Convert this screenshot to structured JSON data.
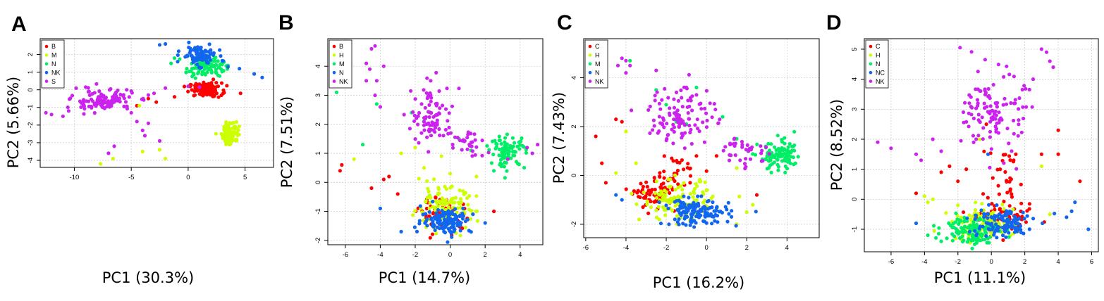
{
  "colors": {
    "red": "#ff0000",
    "yellow": "#ccff00",
    "green": "#00ee66",
    "blue": "#1166ee",
    "magenta": "#cc22ee"
  },
  "chart_data": [
    {
      "type": "scatter",
      "panel": "A",
      "xlabel": "PC1 (30.3%)",
      "ylabel": "PC2 (5.66%)",
      "xlim": [
        -13,
        7.5
      ],
      "ylim": [
        -4.4,
        2.9
      ],
      "xticks": [
        -10,
        -5,
        0,
        5
      ],
      "yticks": [
        -4,
        -3,
        -2,
        -1,
        0,
        1,
        2
      ],
      "grid": true,
      "legend_position": "top-left",
      "series": [
        {
          "name": "B",
          "color": "#ff0000",
          "clusters": [
            [
              1.5,
              0.0,
              1.3,
              0.22,
              110
            ]
          ],
          "points": [
            [
              -4.5,
              -0.9
            ],
            [
              -2.8,
              -0.7
            ],
            [
              -1.2,
              -0.4
            ],
            [
              4.6,
              -0.2
            ],
            [
              -3.5,
              -0.5
            ]
          ]
        },
        {
          "name": "M",
          "color": "#ccff00",
          "clusters": [
            [
              3.7,
              -2.45,
              0.7,
              0.35,
              110
            ]
          ],
          "points": [
            [
              -4.3,
              -0.9
            ],
            [
              -7.7,
              -4.2
            ],
            [
              -6.6,
              -3.9
            ],
            [
              -4.0,
              -3.5
            ],
            [
              -2.5,
              -3.4
            ],
            [
              -2.0,
              -3.9
            ]
          ]
        },
        {
          "name": "N",
          "color": "#00ee66",
          "clusters": [
            [
              1.5,
              1.3,
              1.5,
              0.3,
              100
            ]
          ],
          "points": [
            [
              -1.5,
              1.5
            ],
            [
              -1.2,
              1.8
            ]
          ]
        },
        {
          "name": "NK",
          "color": "#1166ee",
          "clusters": [
            [
              1.0,
              1.95,
              1.4,
              0.3,
              95
            ]
          ],
          "points": [
            [
              -2.0,
              2.6
            ],
            [
              -2.5,
              2.55
            ],
            [
              6.5,
              0.7
            ],
            [
              5.8,
              0.9
            ],
            [
              3.5,
              1.3
            ],
            [
              4.5,
              1.2
            ]
          ]
        },
        {
          "name": "S",
          "color": "#cc22ee",
          "clusters": [
            [
              -7.5,
              -0.6,
              2.5,
              0.35,
              120
            ]
          ],
          "points": [
            [
              -12.0,
              -1.4
            ],
            [
              -12.5,
              -1.3
            ],
            [
              -11.0,
              -1.5
            ],
            [
              -10.5,
              -1.2
            ],
            [
              -7.0,
              -3.6
            ],
            [
              -6.5,
              -3.2
            ],
            [
              -4.0,
              -2.3
            ],
            [
              -3.8,
              -2.6
            ],
            [
              -3.5,
              -1.9
            ],
            [
              -2.5,
              -2.9
            ],
            [
              -4.5,
              -1.8
            ],
            [
              -5.0,
              -1.3
            ],
            [
              -9.0,
              0.15
            ],
            [
              -3.0,
              -0.2
            ],
            [
              -2.0,
              0.1
            ],
            [
              0.0,
              0.2
            ],
            [
              1.0,
              0.15
            ]
          ]
        }
      ]
    },
    {
      "type": "scatter",
      "panel": "B",
      "xlabel": "PC1 (14.7%)",
      "ylabel": "PC2 (7.51%)",
      "xlim": [
        -7,
        5.3
      ],
      "ylim": [
        -2.15,
        4.95
      ],
      "xticks": [
        -6,
        -4,
        -2,
        0,
        2,
        4
      ],
      "yticks": [
        -2,
        -1,
        0,
        1,
        2,
        3,
        4
      ],
      "grid": true,
      "legend_position": "top-left",
      "series": [
        {
          "name": "B",
          "color": "#ff0000",
          "clusters": [
            [
              -0.3,
              -1.1,
              1.3,
              0.3,
              70
            ]
          ],
          "points": [
            [
              -6.2,
              0.6
            ],
            [
              -6.3,
              0.4
            ],
            [
              -4.5,
              -0.2
            ],
            [
              -3.8,
              0.1
            ],
            [
              -3.5,
              0.2
            ],
            [
              -3.0,
              -0.4
            ],
            [
              2.5,
              -1.0
            ]
          ]
        },
        {
          "name": "H",
          "color": "#ccff00",
          "clusters": [
            [
              -0.4,
              -0.9,
              1.7,
              0.4,
              110
            ]
          ],
          "points": [
            [
              -5.5,
              0.8
            ],
            [
              -2.8,
              1.0
            ],
            [
              -2.0,
              1.2
            ],
            [
              -1.5,
              0.5
            ],
            [
              1.5,
              0.2
            ],
            [
              0.0,
              0.3
            ],
            [
              -0.5,
              0.9
            ]
          ]
        },
        {
          "name": "M",
          "color": "#00ee66",
          "clusters": [
            [
              3.3,
              1.05,
              0.9,
              0.3,
              90
            ]
          ],
          "points": [
            [
              -6.5,
              3.1
            ],
            [
              -5.0,
              1.3
            ],
            [
              -4.2,
              2.7
            ],
            [
              -2.2,
              2.4
            ],
            [
              -1.5,
              2.1
            ],
            [
              0.5,
              1.5
            ],
            [
              1.2,
              1.1
            ]
          ]
        },
        {
          "name": "N",
          "color": "#1166ee",
          "clusters": [
            [
              -0.2,
              -1.3,
              1.3,
              0.25,
              130
            ]
          ],
          "points": [
            [
              -4.0,
              -0.9
            ],
            [
              2.0,
              -1.4
            ],
            [
              -2.8,
              -1.7
            ]
          ]
        },
        {
          "name": "NK",
          "color": "#cc22ee",
          "clusters": [
            [
              -1.0,
              2.3,
              1.1,
              0.6,
              90
            ],
            [
              1.0,
              1.3,
              1.0,
              0.3,
              30
            ]
          ],
          "points": [
            [
              -4.5,
              4.6
            ],
            [
              -4.3,
              4.7
            ],
            [
              -4.8,
              4.1
            ],
            [
              -4.3,
              3.0
            ],
            [
              -4.2,
              3.5
            ],
            [
              -4.0,
              2.6
            ],
            [
              -4.8,
              3.5
            ],
            [
              -3.8,
              4.0
            ],
            [
              -4.6,
              3.9
            ],
            [
              3.3,
              0.8
            ],
            [
              4.4,
              1.2
            ],
            [
              5.0,
              1.3
            ],
            [
              4.7,
              1.0
            ]
          ]
        }
      ]
    },
    {
      "type": "scatter",
      "panel": "C",
      "xlabel": "PC1 (16.2%)",
      "ylabel": "PC2 (7.43%)",
      "xlim": [
        -6.1,
        5.6
      ],
      "ylim": [
        -2.55,
        5.6
      ],
      "xticks": [
        -6,
        -4,
        -2,
        0,
        2,
        4
      ],
      "yticks": [
        -2,
        0,
        2,
        4
      ],
      "grid": true,
      "legend_position": "top-left",
      "series": [
        {
          "name": "C",
          "color": "#ff0000",
          "clusters": [
            [
              -2.5,
              -0.8,
              0.9,
              0.3,
              70
            ],
            [
              -1.5,
              0.2,
              1.0,
              0.35,
              30
            ]
          ],
          "points": [
            [
              -5.5,
              1.6
            ],
            [
              -4.5,
              2.3
            ],
            [
              -4.2,
              2.2
            ],
            [
              -5.0,
              -0.3
            ],
            [
              -5.2,
              0.5
            ],
            [
              2.5,
              -0.8
            ],
            [
              0.5,
              0.8
            ],
            [
              -0.5,
              0.8
            ]
          ]
        },
        {
          "name": "H",
          "color": "#ccff00",
          "clusters": [
            [
              -1.5,
              -1.0,
              1.6,
              0.45,
              110
            ]
          ],
          "points": [
            [
              -4.0,
              1.8
            ],
            [
              -4.5,
              0.1
            ],
            [
              -3.5,
              0.5
            ],
            [
              1.5,
              0.3
            ],
            [
              2.0,
              -1.5
            ],
            [
              2.3,
              -1.2
            ],
            [
              1.5,
              -2.0
            ]
          ]
        },
        {
          "name": "M",
          "color": "#00ee66",
          "clusters": [
            [
              3.7,
              0.75,
              1.0,
              0.35,
              100
            ]
          ],
          "points": [
            [
              -3.8,
              4.7
            ],
            [
              -2.5,
              3.5
            ],
            [
              -2.0,
              2.9
            ],
            [
              -0.5,
              3.6
            ],
            [
              0.8,
              2.4
            ],
            [
              1.5,
              1.5
            ],
            [
              -1.0,
              2.1
            ],
            [
              -1.5,
              2.2
            ]
          ]
        },
        {
          "name": "N",
          "color": "#1166ee",
          "clusters": [
            [
              -0.5,
              -1.5,
              1.5,
              0.3,
              140
            ]
          ],
          "points": [
            [
              -4.5,
              -0.8
            ],
            [
              -4.2,
              -1.0
            ]
          ]
        },
        {
          "name": "NK",
          "color": "#cc22ee",
          "clusters": [
            [
              -1.2,
              2.5,
              1.5,
              0.7,
              110
            ],
            [
              1.8,
              1.0,
              1.3,
              0.4,
              35
            ]
          ],
          "points": [
            [
              -4.2,
              4.8
            ],
            [
              -4.0,
              4.7
            ],
            [
              -3.8,
              4.5
            ],
            [
              -4.4,
              4.5
            ],
            [
              -4.0,
              4.2
            ],
            [
              -2.5,
              4.3
            ],
            [
              -1.0,
              3.6
            ],
            [
              -0.5,
              3.3
            ]
          ]
        }
      ]
    },
    {
      "type": "scatter",
      "panel": "D",
      "xlabel": "PC1 (11.1%)",
      "ylabel": "PC2 (8.52%)",
      "xlim": [
        -7.6,
        6.4
      ],
      "ylim": [
        -1.75,
        5.35
      ],
      "xticks": [
        -6,
        -4,
        -2,
        0,
        2,
        4,
        6
      ],
      "yticks": [
        -1,
        0,
        1,
        2,
        3,
        4,
        5
      ],
      "grid": true,
      "legend_position": "top-left",
      "series": [
        {
          "name": "C",
          "color": "#ff0000",
          "clusters": [
            [
              1.0,
              -0.7,
              1.6,
              0.25,
              60
            ],
            [
              0.8,
              0.7,
              1.2,
              0.6,
              30
            ]
          ],
          "points": [
            [
              -4.5,
              0.2
            ],
            [
              -2.0,
              0.6
            ],
            [
              -3.0,
              0.9
            ],
            [
              -2.5,
              1.1
            ],
            [
              -1.5,
              1.0
            ],
            [
              5.3,
              0.6
            ],
            [
              4.0,
              1.5
            ],
            [
              4.0,
              2.3
            ],
            [
              3.0,
              1.5
            ],
            [
              -0.3,
              2.5
            ]
          ]
        },
        {
          "name": "H",
          "color": "#ccff00",
          "clusters": [
            [
              -0.5,
              -0.8,
              1.7,
              0.3,
              110
            ]
          ],
          "points": [
            [
              -4.0,
              0.1
            ],
            [
              -3.8,
              -0.1
            ],
            [
              -3.5,
              0.0
            ],
            [
              -0.7,
              2.0
            ],
            [
              3.0,
              1.1
            ],
            [
              3.5,
              -0.5
            ],
            [
              -2.0,
              -0.2
            ]
          ]
        },
        {
          "name": "N",
          "color": "#00ee66",
          "clusters": [
            [
              -1.2,
              -1.0,
              1.5,
              0.25,
              120
            ]
          ],
          "points": [
            [
              -3.8,
              -1.2
            ],
            [
              -3.0,
              -1.4
            ],
            [
              -1.0,
              -1.5
            ]
          ]
        },
        {
          "name": "NC",
          "color": "#1166ee",
          "clusters": [
            [
              0.5,
              -0.8,
              1.8,
              0.3,
              110
            ]
          ],
          "points": [
            [
              -4.5,
              -0.8
            ],
            [
              4.8,
              -0.4
            ],
            [
              5.0,
              -0.1
            ],
            [
              5.8,
              -1.0
            ],
            [
              4.5,
              -0.6
            ],
            [
              -0.2,
              1.5
            ]
          ]
        },
        {
          "name": "NK",
          "color": "#cc22ee",
          "clusters": [
            [
              0.2,
              2.9,
              1.6,
              0.75,
              120
            ]
          ],
          "points": [
            [
              -6.8,
              1.9
            ],
            [
              -6.0,
              1.7
            ],
            [
              -4.5,
              1.5
            ],
            [
              -4.2,
              1.3
            ],
            [
              3.0,
              5.0
            ],
            [
              3.3,
              4.9
            ],
            [
              3.5,
              4.6
            ],
            [
              3.7,
              4.4
            ],
            [
              2.5,
              4.0
            ],
            [
              -3.5,
              2.0
            ],
            [
              -3.0,
              1.6
            ]
          ]
        }
      ]
    }
  ]
}
